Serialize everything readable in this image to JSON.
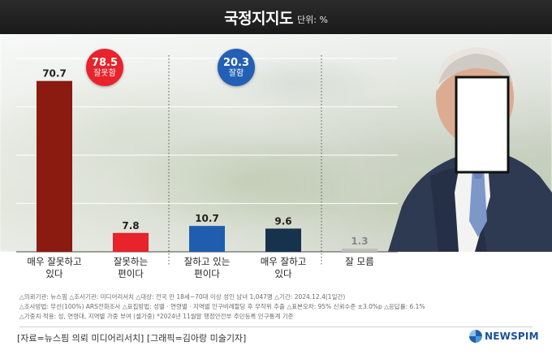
{
  "header": {
    "title": "국정지지도",
    "unit": "단위: %"
  },
  "colors": {
    "bar_very_negative": "#8b1a10",
    "bar_negative": "#e8232b",
    "bar_positive": "#1f5eae",
    "bar_very_positive": "#17324d",
    "bar_unknown": "#bdbdbd",
    "bubble_negative": "#e8232b",
    "bubble_positive": "#2360b5"
  },
  "summary": {
    "negative": {
      "value": "78.5",
      "label": "잘못함"
    },
    "positive": {
      "value": "20.3",
      "label": "잘함"
    }
  },
  "chart_data": {
    "type": "bar",
    "categories": [
      [
        "매우 잘못하고",
        "있다"
      ],
      [
        "잘못하는",
        "편이다"
      ],
      [
        "잘하고 있는",
        "편이다"
      ],
      [
        "매우 잘하고",
        "있다"
      ],
      [
        "잘 모름"
      ]
    ],
    "values": [
      70.7,
      7.8,
      10.7,
      9.6,
      1.3
    ],
    "value_labels": [
      "70.7",
      "7.8",
      "10.7",
      "9.6",
      "1.3"
    ],
    "ylim": [
      0,
      80
    ],
    "grid": true
  },
  "photo": {
    "face_redacted": true,
    "icons": [
      "person-photo",
      "face-redaction-box"
    ]
  },
  "footnotes": [
    "△의뢰기관: 뉴스핌  △조사기관: 미디어리서치  △대상: 전국 만 18세~70대 이상 성인 남녀 1,047명  △기간: 2024.12.4(1일간)",
    "△조사방법: 무선(100%) ARS전화조사  △표집방법: 성별 · 연령별 · 지역별 인구비례할당 후 무작위 추출  △표본오차: 95% 신뢰수준 ±3.0%p  △응답률: 6.1%",
    "△가중치 적용: 성, 연령대, 지역별 가중 부여 (셀가중) *2024년 11월말 행정안전부 주민등록 인구통계 기준"
  ],
  "credit": "[자료=뉴스핌 의뢰 미디어리서치] [그래픽=김아랑 미술기자]",
  "logo": {
    "text": "NEWSPIM",
    "icon": "newspim-logo-icon"
  }
}
